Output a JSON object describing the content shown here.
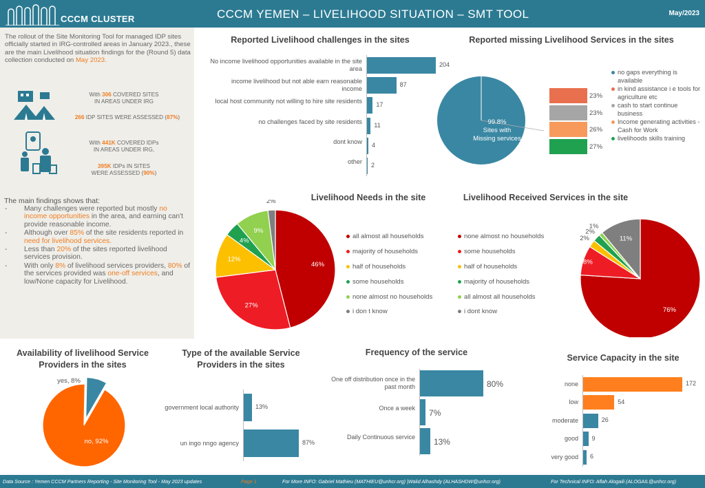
{
  "header": {
    "logo_text": "CCCM CLUSTER",
    "title": "CCCM YEMEN – LIVELIHOOD SITUATION – SMT TOOL",
    "date": "May/2023"
  },
  "intro": {
    "text": "The rollout of the Site Monitoring Tool for managed IDP sites officially started in IRG-controlled areas in January 2023., these are the main Livelihood situation findings for the (Round 5) data collection conducted on ",
    "highlight": "May 2023."
  },
  "stats": {
    "s1a": "With ",
    "s1b": "306",
    "s1c": " COVERED SITES",
    "s1d": "IN AREAS UNDER IRG",
    "s2a": "266",
    "s2b": " IDP  SITES WERE ASSESSED (",
    "s2c": "87%",
    "s2d": ")",
    "s3a": "With ",
    "s3b": "441K",
    "s3c": " COVERED IDPs",
    "s3d": "IN AREAS UNDER IRG,",
    "s4a": "395K",
    "s4b": " IDPs IN SITES",
    "s4c": "WERE ASSESSED (",
    "s4d": "90%",
    "s4e": ")"
  },
  "findings": {
    "title": "The main findings shows that:",
    "f1a": "Many challenges were reported but mostly ",
    "f1b": "no income opportunities",
    "f1c": " in the area, and earning can't provide reasonable income.",
    "f2a": "Although over ",
    "f2b": "85%",
    "f2c": " of the site residents reported in ",
    "f2d": "need for livelihood services.",
    "f3a": "Less than ",
    "f3b": "20%",
    "f3c": " of the sites reported livelihood services provision.",
    "f4a": "With only ",
    "f4b": "8%",
    "f4c": " of livelihood services providers, ",
    "f4d": "80%",
    "f4e": " of the services provided was ",
    "f4f": "one-off services",
    "f4g": ", and low/None capacity for Livelihood."
  },
  "chart_data": [
    {
      "type": "bar",
      "title": "Reported Livelihood challenges in the sites",
      "categories": [
        "No income livelihood opportunities available in the site area",
        "income livelihood but not able earn reasonable income",
        "local host community not willing to hire site residents",
        "no challenges faced by site residents",
        "dont know",
        "other"
      ],
      "values": [
        204,
        87,
        17,
        11,
        4,
        2
      ],
      "color": "#3a87a3"
    },
    {
      "type": "pie",
      "title": "Reported missing Livelihood Services in the sites",
      "center_label_value": "99.8%",
      "center_label_text": "Sites with Missing services",
      "bar_values": [
        "23%",
        "23%",
        "26%",
        "27%"
      ],
      "bar_colors": [
        "#e8704f",
        "#a6a6a6",
        "#f79a5b",
        "#1fa150"
      ],
      "legend": [
        {
          "label": "no gaps everything is available",
          "color": "#3a87a3"
        },
        {
          "label": "in kind assistance i e tools for agriculture etc",
          "color": "#e8704f"
        },
        {
          "label": "cash to start continue business",
          "color": "#a6a6a6"
        },
        {
          "label": "Income generating activities - Cash for Work",
          "color": "#f79a5b"
        },
        {
          "label": "livelihoods skills training",
          "color": "#1fa150"
        }
      ]
    },
    {
      "type": "pie",
      "title": "Livelihood Needs in the site",
      "slices": [
        {
          "label": "all almost all households",
          "value": 46,
          "color": "#c00000"
        },
        {
          "label": "majority of households",
          "value": 27,
          "color": "#ee1c25"
        },
        {
          "label": "half of households",
          "value": 12,
          "color": "#fcc000"
        },
        {
          "label": "some households",
          "value": 4,
          "color": "#1fa150"
        },
        {
          "label": "none almost no households",
          "value": 9,
          "color": "#92d050"
        },
        {
          "label": "i don t know",
          "value": 2,
          "color": "#7f7f7f"
        }
      ]
    },
    {
      "type": "pie",
      "title": "Livelihood Received Services in the site",
      "slices": [
        {
          "label": "none almost no households",
          "value": 76,
          "color": "#c00000"
        },
        {
          "label": "some households",
          "value": 8,
          "color": "#ee1c25"
        },
        {
          "label": "half of households",
          "value": 2,
          "color": "#fcc000"
        },
        {
          "label": "majority of households",
          "value": 2,
          "color": "#1fa150"
        },
        {
          "label": "all almost all households",
          "value": 1,
          "color": "#92d050"
        },
        {
          "label": "i dont know",
          "value": 11,
          "color": "#7f7f7f"
        }
      ]
    },
    {
      "type": "pie",
      "title": "Availability of livelihood Service Providers in the sites",
      "slices": [
        {
          "label": "no",
          "value": 92,
          "color": "#ff6600"
        },
        {
          "label": "yes",
          "value": 8,
          "color": "#3a87a3"
        }
      ],
      "data_labels": [
        "no, 92%",
        "yes, 8%"
      ]
    },
    {
      "type": "bar",
      "title": "Type of the available Service Providers in the sites",
      "categories": [
        "government local authority",
        "un ingo nngo agency"
      ],
      "values": [
        13,
        87
      ],
      "value_labels": [
        "13%",
        "87%"
      ],
      "color": "#3a87a3"
    },
    {
      "type": "bar",
      "title": "Frequency of the service",
      "categories": [
        "One off distribution once in the past month",
        "Once a week",
        "Daily Continuous service"
      ],
      "values": [
        80,
        7,
        13
      ],
      "value_labels": [
        "80%",
        "7%",
        "13%"
      ],
      "color": "#3a87a3"
    },
    {
      "type": "bar",
      "title": "Service Capacity in the site",
      "categories": [
        "none",
        "low",
        "moderate",
        "good",
        "very good"
      ],
      "values": [
        172,
        54,
        26,
        9,
        6
      ],
      "colors": [
        "#ff7f1f",
        "#ff7f1f",
        "#3a87a3",
        "#3a87a3",
        "#3a87a3"
      ]
    }
  ],
  "footer": {
    "source": "Data Source : Yemen CCCM Partners Reporting - Site Monitoring Tool - May 2023 updates",
    "page": "Page 1",
    "more_info": "For More INFO: Gabriel Mathieu (MATHIEU@unhcr.org) |Walid Alhashdy (ALHASHDW@unhcr.org)",
    "tech_info": "For Technical INFO:  Aflah Alogaili (ALOGAIL@unhcr.org)"
  }
}
